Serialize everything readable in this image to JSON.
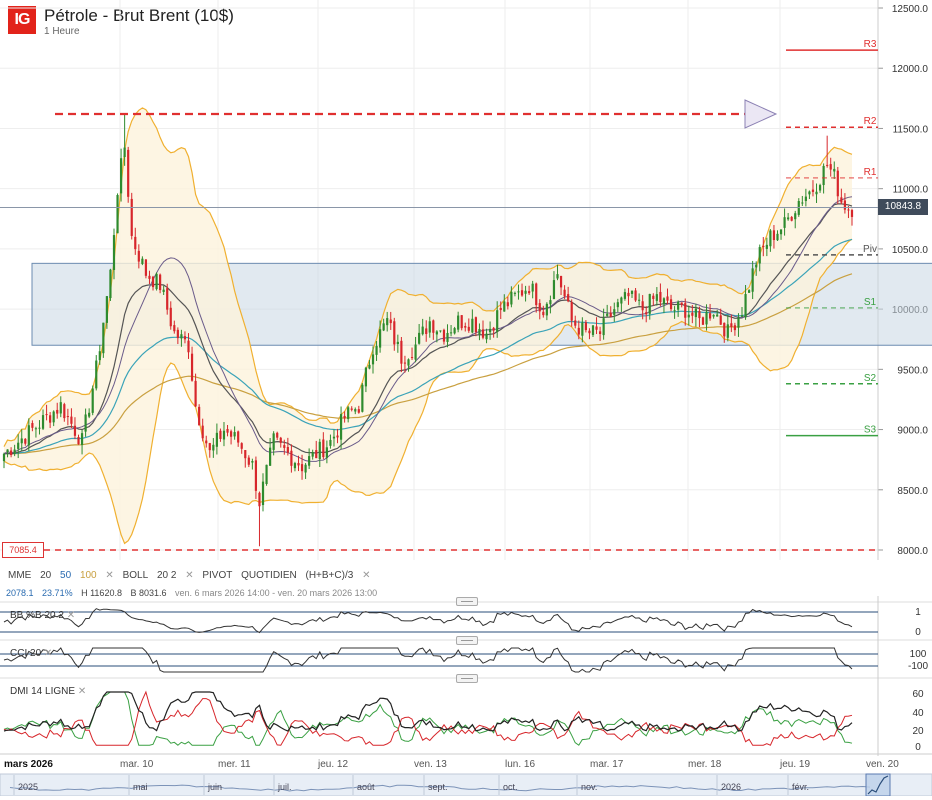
{
  "header": {
    "logo": "IG",
    "title": "Pétrole - Brut Brent (10$)",
    "subtitle": "1 Heure"
  },
  "price_label": "10843.8",
  "low_label": "7085.4",
  "indicators_bar": {
    "mme": "MME",
    "mme_20": "20",
    "mme_50": "50",
    "mme_100": "100",
    "boll": "BOLL",
    "boll_params": "20  2",
    "pivot": "PIVOT",
    "pivot_period": "QUOTIDIEN",
    "pivot_formula": "(H+B+C)/3",
    "close_glyph": "✕"
  },
  "stats_bar": {
    "diff": "2078.1",
    "pct": "23.71%",
    "high": "H 11620.8",
    "low": "B 8031.6",
    "range": "ven. 6 mars 2026 14:00 - ven. 20 mars 2026 13:00"
  },
  "subpanels": {
    "bb": {
      "label": "BB %B",
      "params": "20  2",
      "ticks": [
        "1",
        "0"
      ]
    },
    "cci": {
      "label": "CCI",
      "params": "20",
      "ticks": [
        "100",
        "-100"
      ]
    },
    "dmi": {
      "label": "DMI",
      "params": "14  LIGNE",
      "ticks": [
        "60",
        "40",
        "20",
        "0"
      ]
    }
  },
  "time_axis": {
    "labels": [
      "mars 2026",
      "mar. 10",
      "mer. 11",
      "jeu. 12",
      "ven. 13",
      "lun. 16",
      "mar. 17",
      "mer. 18",
      "jeu. 19",
      "ven. 20"
    ]
  },
  "navigator": {
    "labels": [
      "2025",
      "mai",
      "juin",
      "juil.",
      "août",
      "sept.",
      "oct.",
      "nov.",
      "2026",
      "févr."
    ]
  },
  "colors": {
    "up": "#2e8b2e",
    "down": "#d7262b",
    "bollinger": "#f0b030",
    "bollinger_fill": "#fdf3dc",
    "mme20": "#333333",
    "mme50": "#3aa3b8",
    "mme100": "#c9a040",
    "zone": "#c9d7e4",
    "resistance": "#e03030",
    "support": "#3aa043"
  },
  "chart_data": {
    "type": "candlestick",
    "instrument": "Pétrole - Brut Brent (10$)",
    "timeframe": "1 Heure",
    "ylim": [
      7700,
      12550
    ],
    "y_ticks": [
      8000.0,
      8500.0,
      9000.0,
      9500.0,
      10000.0,
      10500.0,
      11000.0,
      11500.0,
      12000.0,
      12500.0
    ],
    "y_tick_labels": [
      "8000.0",
      "8500.0",
      "9000.0",
      "9500.0",
      "10000.0",
      "10500.0",
      "11000.0",
      "11500.0",
      "12000.0",
      "12500.0"
    ],
    "last_price": 10843.8,
    "period_high": 11620.8,
    "period_low": 8031.6,
    "low_marker": 7085.4,
    "pivots": [
      {
        "name": "R3",
        "value": 12150
      },
      {
        "name": "R2",
        "value": 11510
      },
      {
        "name": "R1",
        "value": 11090
      },
      {
        "name": "Piv",
        "value": 10450
      },
      {
        "name": "S1",
        "value": 10010
      },
      {
        "name": "S2",
        "value": 9380
      },
      {
        "name": "S3",
        "value": 8950
      }
    ],
    "resistance_line": 11620,
    "support_line": 8000,
    "zone": [
      9700,
      10380
    ],
    "close_keypoints": [
      [
        0,
        8800
      ],
      [
        8,
        9000
      ],
      [
        16,
        9200
      ],
      [
        22,
        8900
      ],
      [
        26,
        9500
      ],
      [
        30,
        10300
      ],
      [
        32,
        11000
      ],
      [
        34,
        11350
      ],
      [
        36,
        10600
      ],
      [
        40,
        10300
      ],
      [
        44,
        10200
      ],
      [
        48,
        9800
      ],
      [
        52,
        9700
      ],
      [
        54,
        9200
      ],
      [
        58,
        8800
      ],
      [
        62,
        9000
      ],
      [
        66,
        8900
      ],
      [
        70,
        8700
      ],
      [
        72,
        8400
      ],
      [
        76,
        8900
      ],
      [
        80,
        8800
      ],
      [
        84,
        8700
      ],
      [
        88,
        8800
      ],
      [
        92,
        8900
      ],
      [
        96,
        9100
      ],
      [
        100,
        9200
      ],
      [
        104,
        9700
      ],
      [
        108,
        9900
      ],
      [
        112,
        9600
      ],
      [
        116,
        9700
      ],
      [
        120,
        9900
      ],
      [
        124,
        9800
      ],
      [
        128,
        9900
      ],
      [
        132,
        9900
      ],
      [
        136,
        9800
      ],
      [
        140,
        10000
      ],
      [
        144,
        10100
      ],
      [
        148,
        10200
      ],
      [
        152,
        10000
      ],
      [
        156,
        10300
      ],
      [
        160,
        9900
      ],
      [
        164,
        9800
      ],
      [
        168,
        9800
      ],
      [
        172,
        10000
      ],
      [
        176,
        10100
      ],
      [
        180,
        10000
      ],
      [
        184,
        10100
      ],
      [
        188,
        10000
      ],
      [
        192,
        10000
      ],
      [
        196,
        9900
      ],
      [
        200,
        10000
      ],
      [
        204,
        9800
      ],
      [
        208,
        10000
      ],
      [
        212,
        10400
      ],
      [
        216,
        10600
      ],
      [
        220,
        10700
      ],
      [
        224,
        10900
      ],
      [
        228,
        11000
      ],
      [
        232,
        11200
      ],
      [
        234,
        11100
      ],
      [
        236,
        10900
      ],
      [
        238,
        10840
      ]
    ]
  }
}
